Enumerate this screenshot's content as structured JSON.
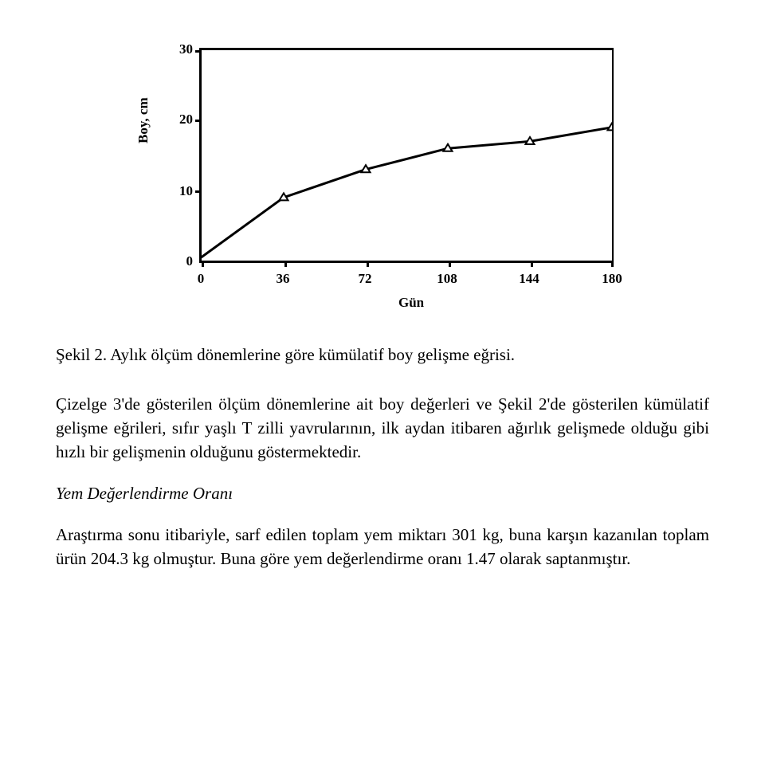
{
  "chart": {
    "type": "line",
    "ylabel": "Boy, cm",
    "xlabel": "Gün",
    "xlim": [
      0,
      180
    ],
    "ylim": [
      0,
      30
    ],
    "xticks": [
      0,
      36,
      72,
      108,
      144,
      180
    ],
    "yticks": [
      0,
      10,
      20,
      30
    ],
    "xtick_labels": [
      "0",
      "36",
      "72",
      "108",
      "144",
      "180"
    ],
    "ytick_labels": [
      "0",
      "10",
      "20",
      "30"
    ],
    "line_color": "#000000",
    "marker_color": "#ffffff",
    "marker_edge_color": "#000000",
    "marker_style": "triangle",
    "marker_size": 10,
    "line_width": 3,
    "background_color": "#ffffff",
    "border_color": "#000000",
    "label_fontsize": 17,
    "tick_fontsize": 17,
    "points_x": [
      0,
      36,
      72,
      108,
      144,
      180
    ],
    "points_y": [
      0.5,
      9,
      13,
      16,
      17,
      19
    ]
  },
  "caption": "Şekil 2. Aylık ölçüm dönemlerine göre kümülatif boy gelişme eğrisi.",
  "paragraph1": "Çizelge 3'de gösterilen ölçüm dönemlerine ait boy değerleri ve Şekil 2'de gösterilen kümülatif gelişme eğrileri, sıfır yaşlı T zilli yavrularının, ilk aydan itibaren ağırlık gelişmede olduğu gibi hızlı bir gelişmenin olduğunu göstermektedir.",
  "heading": "Yem Değerlendirme Oranı",
  "paragraph2": "Araştırma sonu itibariyle, sarf edilen toplam yem miktarı 301 kg, buna karşın kazanılan toplam ürün 204.3 kg olmuştur. Buna göre yem değerlendirme oranı 1.47 olarak saptanmıştır."
}
